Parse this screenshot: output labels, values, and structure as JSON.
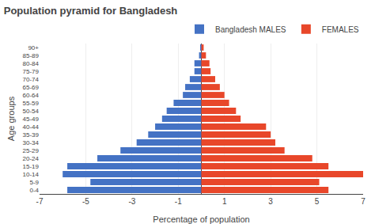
{
  "chart_data": {
    "type": "bar",
    "orientation": "horizontal",
    "title": "Population pyramid for Bangladesh",
    "xlabel": "Percentage of population",
    "ylabel": "Age groups",
    "categories": [
      "0-4",
      "5-9",
      "10-14",
      "15-19",
      "20-24",
      "25-29",
      "30-34",
      "35-39",
      "40-44",
      "45-49",
      "50-54",
      "55-59",
      "60-64",
      "65-69",
      "70-74",
      "75-79",
      "80-84",
      "85-89",
      "90+"
    ],
    "series": [
      {
        "name": "Bangladesh MALES",
        "color": "#4472C4",
        "values": [
          -5.8,
          -4.8,
          -6.0,
          -5.8,
          -4.5,
          -3.5,
          -2.8,
          -2.3,
          -2.0,
          -1.7,
          -1.5,
          -1.2,
          -0.8,
          -0.7,
          -0.5,
          -0.3,
          -0.3,
          -0.1,
          -0.05
        ]
      },
      {
        "name": "FEMALES",
        "color": "#E8472A",
        "values": [
          5.5,
          5.1,
          7.0,
          5.5,
          4.8,
          3.6,
          3.2,
          3.0,
          2.8,
          1.7,
          1.5,
          1.2,
          1.0,
          0.8,
          0.6,
          0.4,
          0.35,
          0.2,
          0.1
        ]
      }
    ],
    "xlim": [
      -7,
      7
    ],
    "xticks": [
      -7,
      -5,
      -3,
      -1,
      1,
      3,
      5,
      7
    ],
    "grid": true,
    "legend": "upper right"
  }
}
